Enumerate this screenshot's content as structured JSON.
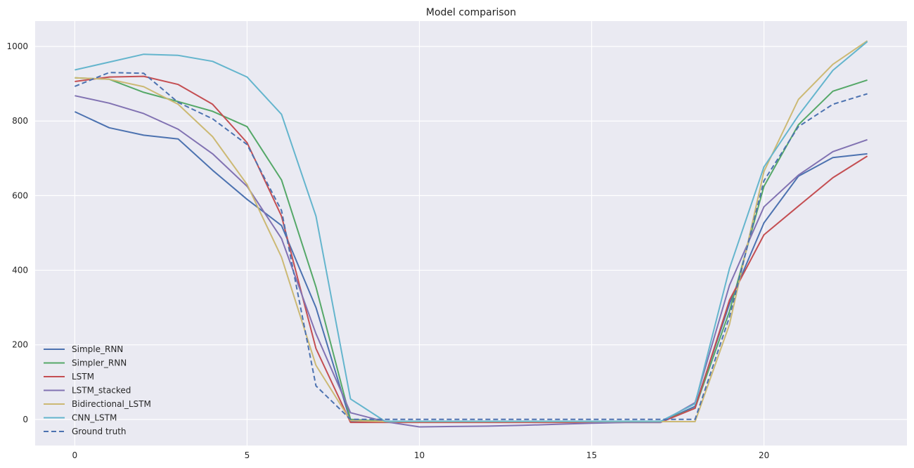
{
  "chart_data": {
    "type": "line",
    "title": "Model comparison",
    "xlabel": "",
    "ylabel": "",
    "xlim": [
      -1.15,
      24.15
    ],
    "ylim": [
      -70,
      1068
    ],
    "xticks": [
      0,
      5,
      10,
      15,
      20
    ],
    "yticks": [
      0,
      200,
      400,
      600,
      800,
      1000
    ],
    "grid": true,
    "legend_position": "lower-left",
    "x": [
      0,
      1,
      2,
      3,
      4,
      5,
      6,
      7,
      8,
      9,
      10,
      11,
      12,
      13,
      14,
      15,
      16,
      17,
      18,
      19,
      20,
      21,
      22,
      23
    ],
    "series": [
      {
        "name": "Simple_RNN",
        "color": "#4c72b0",
        "style": "solid",
        "values": [
          825,
          782,
          762,
          752,
          668,
          590,
          520,
          300,
          -5,
          -7,
          -7,
          -7,
          -7,
          -7,
          -7,
          -7,
          -7,
          -7,
          35,
          310,
          527,
          652,
          702,
          712
        ]
      },
      {
        "name": "Simpler_RNN",
        "color": "#55a868",
        "style": "solid",
        "values": [
          916,
          912,
          877,
          852,
          826,
          785,
          642,
          355,
          0,
          -5,
          -5,
          -5,
          -5,
          -5,
          -5,
          -5,
          -5,
          -5,
          30,
          290,
          625,
          790,
          880,
          910
        ]
      },
      {
        "name": "LSTM",
        "color": "#c44e52",
        "style": "solid",
        "values": [
          906,
          918,
          920,
          898,
          845,
          742,
          545,
          190,
          -8,
          -8,
          -8,
          -8,
          -8,
          -8,
          -8,
          -8,
          -8,
          -8,
          30,
          320,
          495,
          572,
          648,
          706
        ]
      },
      {
        "name": "LSTM_stacked",
        "color": "#8172b2",
        "style": "solid",
        "values": [
          868,
          848,
          820,
          778,
          712,
          625,
          485,
          230,
          18,
          -6,
          -20,
          -19,
          -18,
          -16,
          -13,
          -10,
          -8,
          -8,
          45,
          360,
          570,
          655,
          718,
          750
        ]
      },
      {
        "name": "Bidirectional_LSTM",
        "color": "#ccb974",
        "style": "solid",
        "values": [
          916,
          912,
          892,
          845,
          758,
          630,
          435,
          145,
          -3,
          -6,
          -6,
          -6,
          -6,
          -6,
          -6,
          -6,
          -6,
          -6,
          -6,
          255,
          665,
          858,
          952,
          1015
        ]
      },
      {
        "name": "CNN_LSTM",
        "color": "#64b5cd",
        "style": "solid",
        "values": [
          937,
          958,
          979,
          976,
          960,
          918,
          818,
          545,
          55,
          -5,
          -5,
          -5,
          -5,
          -5,
          -5,
          -5,
          -5,
          -5,
          42,
          405,
          677,
          815,
          936,
          1013
        ]
      },
      {
        "name": "Ground truth",
        "color": "#4c72b0",
        "style": "dashed",
        "values": [
          893,
          930,
          928,
          850,
          806,
          737,
          560,
          90,
          0,
          0,
          0,
          0,
          0,
          0,
          0,
          0,
          0,
          0,
          0,
          275,
          640,
          785,
          845,
          873
        ]
      }
    ]
  }
}
